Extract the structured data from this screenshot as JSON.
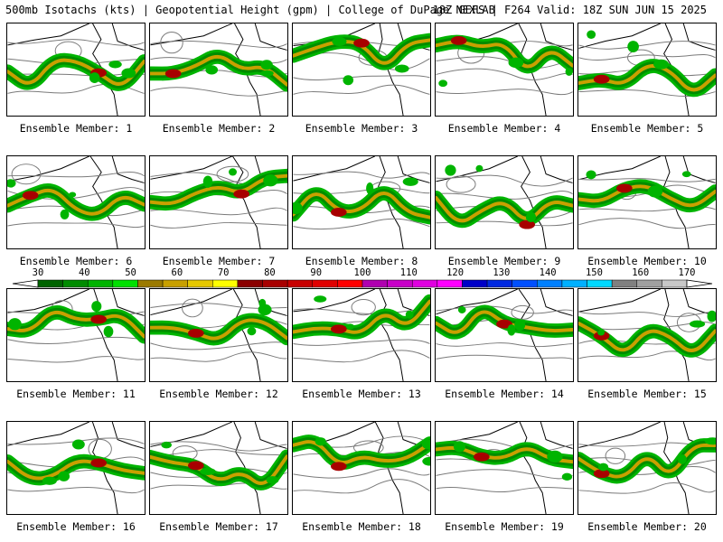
{
  "header": {
    "left": "500mb Isotachs (kts) | Geopotential Height (gpm) | College of DuPage NEXLAB",
    "right": "18Z GEFS | F264 Valid: 18Z SUN JUN 15 2025"
  },
  "colorbar": {
    "labels": [
      "30",
      "40",
      "50",
      "60",
      "70",
      "80",
      "90",
      "100",
      "110",
      "120",
      "130",
      "140",
      "150",
      "160",
      "170"
    ],
    "colors": [
      "#006400",
      "#008c00",
      "#00b400",
      "#00e000",
      "#9b7a00",
      "#c8a000",
      "#e6c800",
      "#ffff00",
      "#8b0000",
      "#a80000",
      "#c80000",
      "#e00000",
      "#ff0000",
      "#b000b0",
      "#c800c8",
      "#e000e0",
      "#ff00ff",
      "#0000c8",
      "#0028e0",
      "#0050ff",
      "#0080ff",
      "#00b0ff",
      "#00d8ff",
      "#808080",
      "#a0a0a0",
      "#c8c8c8"
    ]
  },
  "members": [
    {
      "label": "Ensemble Member: 1"
    },
    {
      "label": "Ensemble Member: 2"
    },
    {
      "label": "Ensemble Member: 3"
    },
    {
      "label": "Ensemble Member: 4"
    },
    {
      "label": "Ensemble Member: 5"
    },
    {
      "label": "Ensemble Member: 6"
    },
    {
      "label": "Ensemble Member: 7"
    },
    {
      "label": "Ensemble Member: 8"
    },
    {
      "label": "Ensemble Member: 9"
    },
    {
      "label": "Ensemble Member: 10"
    },
    {
      "label": "Ensemble Member: 11"
    },
    {
      "label": "Ensemble Member: 12"
    },
    {
      "label": "Ensemble Member: 13"
    },
    {
      "label": "Ensemble Member: 14"
    },
    {
      "label": "Ensemble Member: 15"
    },
    {
      "label": "Ensemble Member: 16"
    },
    {
      "label": "Ensemble Member: 17"
    },
    {
      "label": "Ensemble Member: 18"
    },
    {
      "label": "Ensemble Member: 19"
    },
    {
      "label": "Ensemble Member: 20"
    }
  ]
}
